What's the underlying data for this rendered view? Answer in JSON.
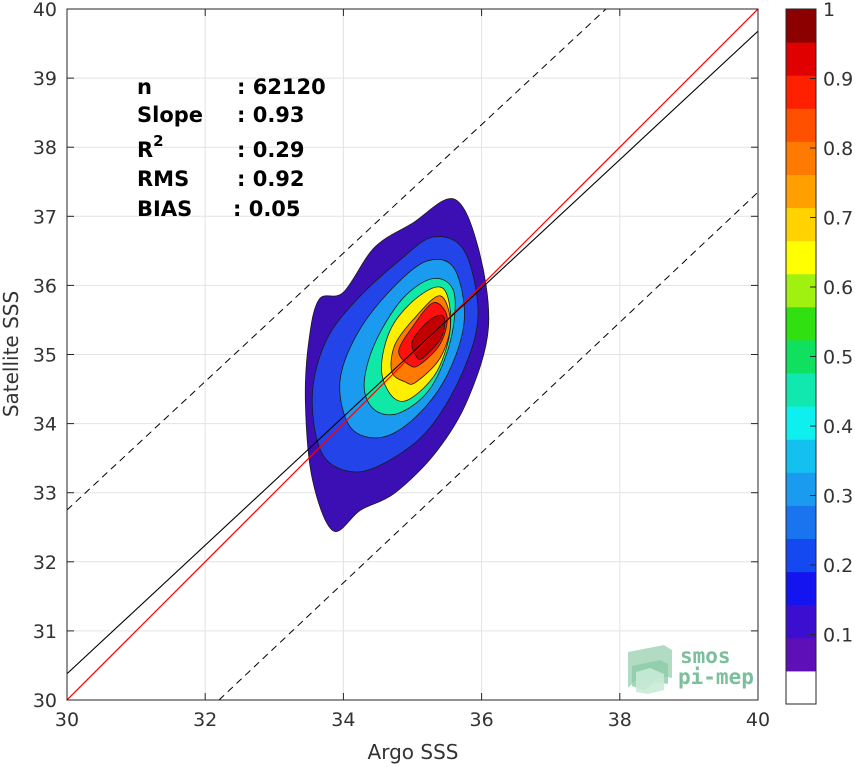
{
  "chart_data": {
    "type": "contour",
    "xlabel": "Argo SSS",
    "ylabel": "Satellite SSS",
    "xlim": [
      30,
      40
    ],
    "ylim": [
      30,
      40
    ],
    "xticks": [
      "30",
      "32",
      "34",
      "36",
      "38",
      "40"
    ],
    "yticks": [
      "30",
      "31",
      "32",
      "33",
      "34",
      "35",
      "36",
      "37",
      "38",
      "39",
      "40"
    ],
    "grid": true,
    "stats": {
      "n_label": "n",
      "n_value": ": 62120",
      "slope_label": "Slope",
      "slope_value": ": 0.93",
      "r2_label": "R",
      "r2_sup": "2",
      "r2_value": ": 0.29",
      "rms_label": "RMS",
      "rms_value": ": 0.92",
      "bias_label": "BIAS",
      "bias_value": ": 0.05"
    },
    "lines": {
      "identity": {
        "slope": 1,
        "intercept": 0,
        "color": "#ff0000"
      },
      "regression": {
        "slope": 0.93,
        "x0": 30,
        "y0": 30.38,
        "color": "#000000"
      },
      "envelope_upper": {
        "x": [
          30,
          37.8
        ],
        "y": [
          32.75,
          40
        ],
        "style": "dashed"
      },
      "envelope_lower": {
        "x": [
          32.2,
          40
        ],
        "y": [
          30,
          37.35
        ],
        "style": "dashed"
      }
    },
    "contour_levels": [
      0.05,
      0.1,
      0.15,
      0.2,
      0.25,
      0.3,
      0.35,
      0.4,
      0.45,
      0.5,
      0.55,
      0.6,
      0.65,
      0.7,
      0.75,
      0.8,
      0.85,
      0.9,
      0.95
    ],
    "contours": [
      {
        "level": 0.05,
        "color": "#3c0fb4",
        "points": [
          [
            33.85,
            32.45
          ],
          [
            34.25,
            32.75
          ],
          [
            34.75,
            33.0
          ],
          [
            35.35,
            33.6
          ],
          [
            35.8,
            34.35
          ],
          [
            36.1,
            35.4
          ],
          [
            35.95,
            36.55
          ],
          [
            35.6,
            37.25
          ],
          [
            35.0,
            36.9
          ],
          [
            34.45,
            36.55
          ],
          [
            34.0,
            35.9
          ],
          [
            33.65,
            35.8
          ],
          [
            33.5,
            35.2
          ],
          [
            33.45,
            34.3
          ],
          [
            33.55,
            33.2
          ]
        ]
      },
      {
        "level": 0.2,
        "color": "#2244e8",
        "points": [
          [
            34.2,
            33.3
          ],
          [
            34.8,
            33.55
          ],
          [
            35.3,
            34.0
          ],
          [
            35.75,
            34.8
          ],
          [
            35.95,
            35.6
          ],
          [
            35.75,
            36.5
          ],
          [
            35.3,
            36.7
          ],
          [
            34.8,
            36.35
          ],
          [
            34.2,
            35.8
          ],
          [
            33.75,
            35.2
          ],
          [
            33.55,
            34.4
          ],
          [
            33.7,
            33.55
          ]
        ]
      },
      {
        "level": 0.3,
        "color": "#1a9bf0",
        "points": [
          [
            34.55,
            33.8
          ],
          [
            35.05,
            34.1
          ],
          [
            35.5,
            34.7
          ],
          [
            35.75,
            35.5
          ],
          [
            35.6,
            36.25
          ],
          [
            35.2,
            36.35
          ],
          [
            34.7,
            35.95
          ],
          [
            34.2,
            35.3
          ],
          [
            33.95,
            34.6
          ],
          [
            34.1,
            33.95
          ]
        ]
      },
      {
        "level": 0.45,
        "color": "#10e8a8",
        "points": [
          [
            34.8,
            34.15
          ],
          [
            35.25,
            34.5
          ],
          [
            35.55,
            35.2
          ],
          [
            35.6,
            35.9
          ],
          [
            35.3,
            36.1
          ],
          [
            34.85,
            35.8
          ],
          [
            34.45,
            35.15
          ],
          [
            34.3,
            34.55
          ],
          [
            34.45,
            34.2
          ]
        ]
      },
      {
        "level": 0.6,
        "color": "#ffee00",
        "points": [
          [
            34.95,
            34.35
          ],
          [
            35.35,
            34.75
          ],
          [
            35.55,
            35.4
          ],
          [
            35.45,
            35.95
          ],
          [
            35.1,
            35.85
          ],
          [
            34.7,
            35.4
          ],
          [
            34.55,
            34.8
          ],
          [
            34.7,
            34.4
          ]
        ]
      },
      {
        "level": 0.75,
        "color": "#ff7a00",
        "points": [
          [
            35.05,
            34.6
          ],
          [
            35.4,
            34.95
          ],
          [
            35.55,
            35.45
          ],
          [
            35.4,
            35.85
          ],
          [
            35.05,
            35.55
          ],
          [
            34.75,
            35.15
          ],
          [
            34.7,
            34.75
          ],
          [
            34.9,
            34.6
          ]
        ]
      },
      {
        "level": 0.9,
        "color": "#ff1010",
        "points": [
          [
            35.1,
            34.85
          ],
          [
            35.4,
            35.15
          ],
          [
            35.5,
            35.55
          ],
          [
            35.3,
            35.75
          ],
          [
            35.0,
            35.4
          ],
          [
            34.8,
            35.05
          ],
          [
            34.95,
            34.85
          ]
        ]
      },
      {
        "level": 0.95,
        "color": "#c30000",
        "points": [
          [
            35.15,
            34.95
          ],
          [
            35.42,
            35.25
          ],
          [
            35.45,
            35.55
          ],
          [
            35.25,
            35.5
          ],
          [
            35.0,
            35.2
          ],
          [
            35.05,
            34.98
          ]
        ]
      }
    ],
    "colorbar": {
      "range": [
        0,
        1
      ],
      "tick_labels": [
        "0.1",
        "0.2",
        "0.3",
        "0.4",
        "0.5",
        "0.6",
        "0.7",
        "0.8",
        "0.9",
        "1"
      ],
      "colors": [
        "#ffffff",
        "#5e0fb8",
        "#3c0fd0",
        "#1414f0",
        "#1448f0",
        "#1a74f0",
        "#1a9bf0",
        "#14c0f0",
        "#0ef0f0",
        "#10e8b0",
        "#10e060",
        "#30e010",
        "#a0f010",
        "#ffff00",
        "#ffd200",
        "#ffa000",
        "#ff7a00",
        "#ff5000",
        "#ff2000",
        "#e00000",
        "#8c0000"
      ]
    },
    "logo": {
      "line1": "smos",
      "line2": "pi-mep"
    }
  }
}
